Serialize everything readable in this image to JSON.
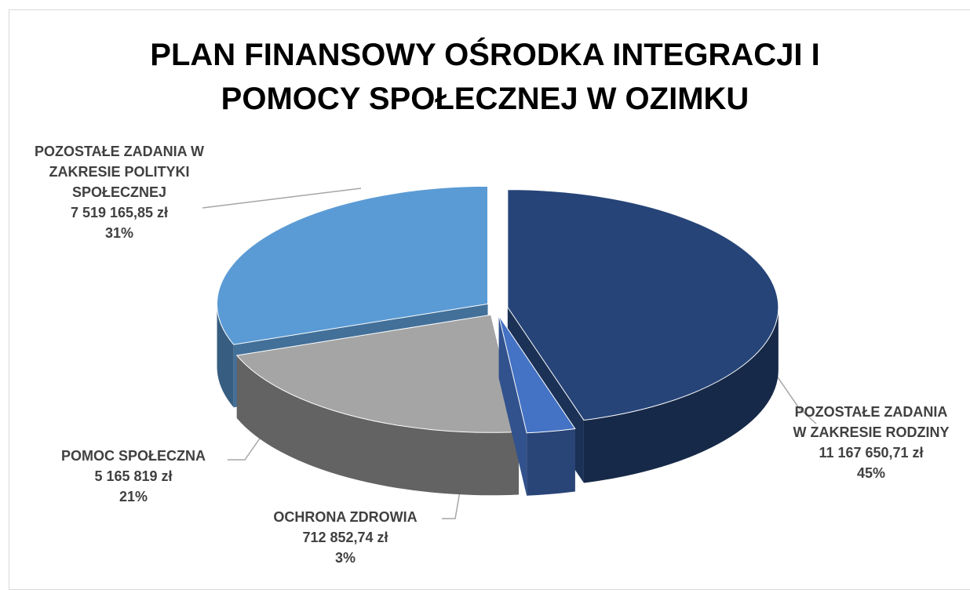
{
  "chart_data": {
    "type": "pie3d",
    "title": "PLAN FINANSOWY OŚRODKA INTEGRACJI I POMOCY SPOŁECZNEJ W OZIMKU",
    "categories": [
      "POZOSTAŁE ZADANIA W ZAKRESIE RODZINY",
      "OCHRONA ZDROWIA",
      "POMOC SPOŁECZNA",
      "POZOSTAŁE ZADANIA W ZAKRESIE POLITYKI SPOŁECZNEJ"
    ],
    "values": [
      11167650.71,
      712852.74,
      5165819,
      7519165.85
    ],
    "value_labels": [
      "11 167 650,71 zł",
      "712 852,74 zł",
      "5 165 819 zł",
      "7 519 165,85 zł"
    ],
    "percent_labels": [
      "45%",
      "3%",
      "21%",
      "31%"
    ],
    "colors": [
      "#264478",
      "#4472c4",
      "#a5a5a5",
      "#5b9bd5"
    ]
  }
}
